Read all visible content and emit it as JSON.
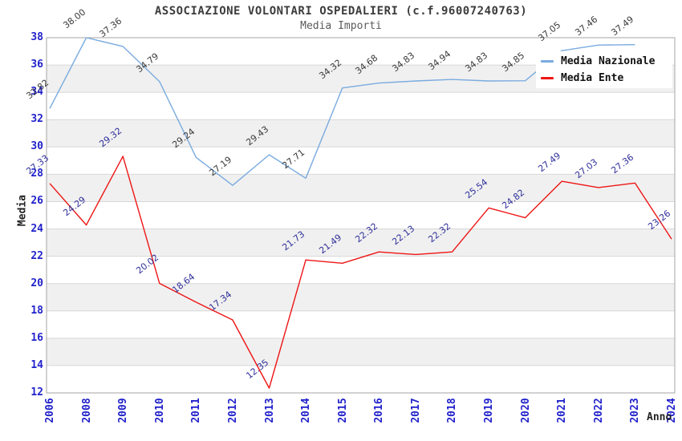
{
  "chart_data": {
    "type": "line",
    "title": "ASSOCIAZIONE VOLONTARI OSPEDALIERI (c.f.96007240763)",
    "subtitle": "Media Importi",
    "xlabel": "Anno",
    "ylabel": "Media",
    "categories": [
      "2006",
      "2008",
      "2009",
      "2010",
      "2011",
      "2012",
      "2013",
      "2014",
      "2015",
      "2016",
      "2017",
      "2018",
      "2019",
      "2020",
      "2021",
      "2022",
      "2023",
      "2024"
    ],
    "ylim": [
      12,
      38
    ],
    "ytick_step": 2,
    "grid": true,
    "banded_background": true,
    "legend_position": "top-right",
    "series": [
      {
        "name": "Media Nazionale",
        "color": "#7aabdf",
        "label_color": "#3a3a3a",
        "values": [
          32.82,
          38.0,
          37.36,
          34.79,
          29.24,
          27.19,
          29.43,
          27.71,
          34.32,
          34.68,
          34.83,
          34.94,
          34.83,
          34.85,
          37.05,
          37.46,
          37.49,
          null
        ]
      },
      {
        "name": "Media Ente",
        "color": "#ee1515",
        "label_color": "#30309b",
        "values": [
          27.33,
          24.29,
          29.32,
          20.02,
          18.64,
          17.34,
          12.35,
          21.73,
          21.49,
          22.32,
          22.13,
          22.32,
          25.54,
          24.82,
          27.49,
          27.03,
          27.36,
          23.26
        ]
      }
    ],
    "colors": {
      "tick": "#2222cc",
      "grid": "#d8d8d8",
      "band": "#f0f0f0",
      "plot_border": "#a6a6a6",
      "title": "#3c3c3c",
      "subtitle": "#5a5a5a"
    }
  }
}
